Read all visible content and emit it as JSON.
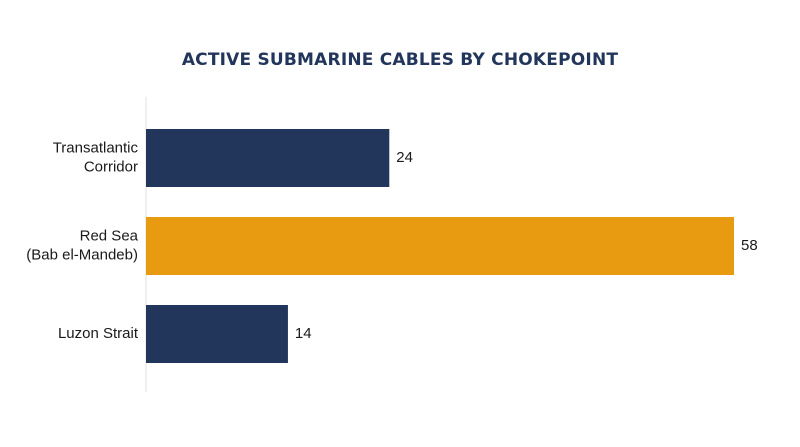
{
  "chart_data": {
    "type": "bar",
    "orientation": "horizontal",
    "title": "ACTIVE SUBMARINE CABLES BY CHOKEPOINT",
    "categories": [
      [
        "Transatlantic",
        "Corridor"
      ],
      [
        "Red Sea",
        "(Bab el-Mandeb)"
      ],
      [
        "Luzon Strait"
      ]
    ],
    "values": [
      24,
      58,
      14
    ],
    "colors": [
      "#22355a",
      "#e89a10",
      "#22355a"
    ],
    "xlim": [
      0,
      58
    ],
    "grid": false,
    "legend": "none"
  }
}
